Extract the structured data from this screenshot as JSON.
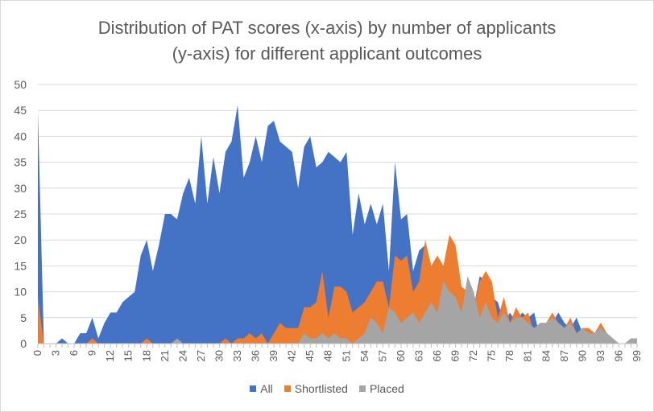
{
  "chart_data": {
    "type": "area",
    "title_lines": [
      "Distribution of PAT scores (x-axis) by number of applicants",
      "(y-axis) for different applicant outcomes"
    ],
    "xlabel": "",
    "ylabel": "",
    "xlim": [
      0,
      99
    ],
    "ylim": [
      0,
      50
    ],
    "y_ticks": [
      0,
      5,
      10,
      15,
      20,
      25,
      30,
      35,
      40,
      45,
      50
    ],
    "x_tick_labels": [
      "0",
      "3",
      "6",
      "9",
      "12",
      "15",
      "18",
      "21",
      "24",
      "27",
      "30",
      "33",
      "36",
      "39",
      "42",
      "45",
      "48",
      "51",
      "54",
      "57",
      "60",
      "63",
      "66",
      "69",
      "72",
      "75",
      "78",
      "81",
      "84",
      "87",
      "90",
      "93",
      "96",
      "99"
    ],
    "grid": true,
    "legend_position": "bottom",
    "series": [
      {
        "name": "All",
        "color": "#4472c4",
        "values": [
          45,
          0,
          0,
          0,
          1,
          0,
          0,
          2,
          2,
          5,
          1,
          4,
          6,
          6,
          8,
          9,
          10,
          17,
          20,
          14,
          19,
          25,
          25,
          24,
          29,
          32,
          27,
          40,
          27,
          36,
          29,
          37,
          39,
          46,
          32,
          35,
          40,
          35,
          42,
          43,
          39,
          38,
          37,
          30,
          38,
          40,
          34,
          35,
          37,
          36,
          35,
          37,
          21,
          29,
          23,
          27,
          23,
          27,
          14,
          35,
          24,
          25,
          14,
          18,
          19,
          14,
          14,
          15,
          15,
          15,
          11,
          10,
          7,
          13,
          12,
          9,
          8,
          4,
          6,
          4,
          6,
          5,
          6,
          1,
          3,
          4,
          6,
          4,
          3,
          5,
          2,
          3,
          2,
          4,
          2,
          1,
          0,
          0,
          1,
          1
        ]
      },
      {
        "name": "Shortlisted",
        "color": "#ed7d31",
        "values": [
          9,
          0,
          0,
          0,
          0,
          0,
          0,
          0,
          0,
          1,
          0,
          0,
          0,
          0,
          0,
          0,
          0,
          0,
          1,
          0,
          0,
          0,
          0,
          0,
          0,
          0,
          0,
          0,
          0,
          0,
          0,
          1,
          0,
          1,
          1,
          2,
          1,
          2,
          0,
          2,
          4,
          3,
          3,
          3,
          7,
          7,
          8,
          14,
          5,
          11,
          11,
          10,
          6,
          7,
          8,
          10,
          12,
          12,
          7,
          17,
          16,
          17,
          10,
          12,
          20,
          15,
          17,
          15,
          21,
          19,
          11,
          10,
          7,
          12,
          14,
          12,
          5,
          9,
          4,
          7,
          5,
          6,
          2,
          4,
          4,
          6,
          4,
          3,
          5,
          2,
          3,
          3,
          2,
          4,
          2,
          1,
          0,
          0,
          1,
          1
        ]
      },
      {
        "name": "Placed",
        "color": "#a5a5a5",
        "values": [
          0,
          0,
          0,
          0,
          0,
          0,
          0,
          0,
          0,
          0,
          0,
          0,
          0,
          0,
          0,
          0,
          0,
          0,
          0,
          0,
          0,
          0,
          0,
          1,
          0,
          0,
          0,
          0,
          0,
          0,
          0,
          0,
          0,
          0,
          0,
          0,
          0,
          0,
          0,
          0,
          0,
          0,
          0,
          0,
          2,
          1,
          1,
          2,
          1,
          2,
          1,
          1,
          0,
          1,
          2,
          5,
          4,
          2,
          7,
          6,
          4,
          5,
          6,
          4,
          6,
          8,
          6,
          12,
          10,
          9,
          6,
          13,
          10,
          5,
          8,
          5,
          4,
          6,
          4,
          5,
          5,
          4,
          3,
          4,
          4,
          5,
          4,
          3,
          4,
          2,
          3,
          2,
          2,
          3,
          2,
          1,
          0,
          0,
          1,
          1
        ]
      }
    ]
  }
}
